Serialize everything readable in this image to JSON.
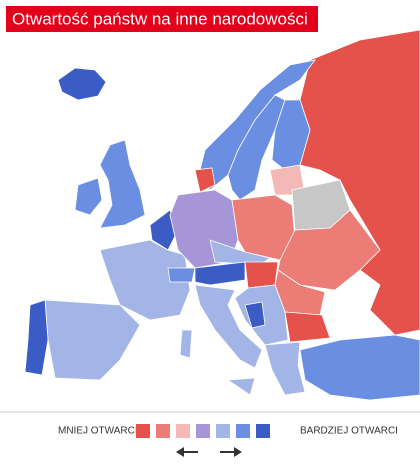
{
  "header": {
    "title": "Otwartość państw na inne narodowości"
  },
  "legend": {
    "left_label": "MNIEJ OTWARCI",
    "right_label": "BARDZIEJ OTWARCI",
    "colors": [
      "#e5514b",
      "#eb7c76",
      "#f4b9b6",
      "#a696d8",
      "#a3b5e6",
      "#6a8ee2",
      "#3b5cc4"
    ]
  }
}
